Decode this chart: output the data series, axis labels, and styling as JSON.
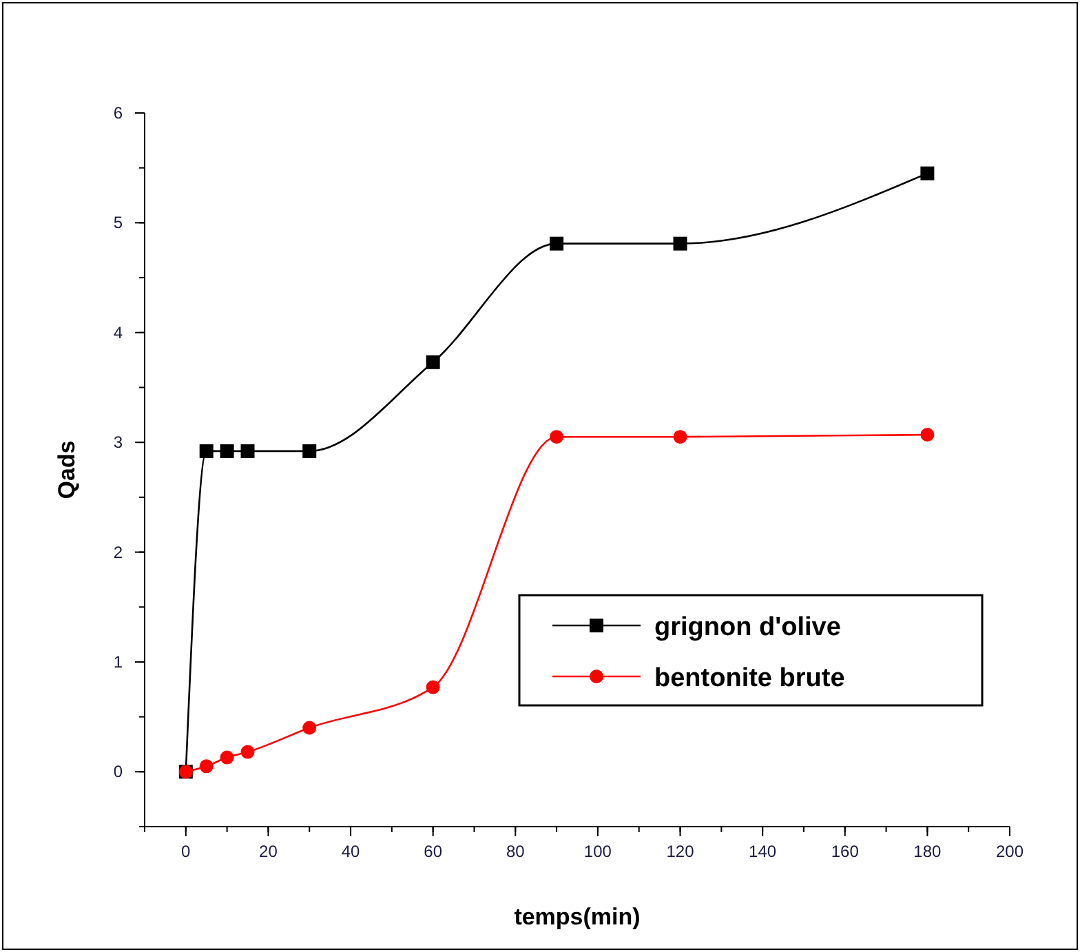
{
  "chart_data": {
    "type": "line",
    "xlabel": "temps(min)",
    "ylabel": "Qads",
    "x": [
      0,
      5,
      10,
      15,
      30,
      60,
      90,
      120,
      180
    ],
    "series": [
      {
        "name": "grignon d'olive",
        "color": "#000000",
        "marker": "square",
        "values": [
          0,
          2.92,
          2.92,
          2.92,
          2.92,
          3.73,
          4.81,
          4.81,
          5.45
        ]
      },
      {
        "name": "bentonite brute",
        "color": "#ff0000",
        "marker": "circle",
        "values": [
          0,
          0.05,
          0.13,
          0.18,
          0.4,
          0.77,
          3.05,
          3.05,
          3.07
        ]
      }
    ],
    "xlim": [
      -10,
      200
    ],
    "xticks": [
      0,
      20,
      40,
      60,
      80,
      100,
      120,
      140,
      160,
      180,
      200
    ],
    "ylim": [
      -0.5,
      6
    ],
    "yticks": [
      0,
      1,
      2,
      3,
      4,
      5,
      6
    ],
    "grid": false,
    "legend": "bottom right",
    "line_style": "solid"
  }
}
